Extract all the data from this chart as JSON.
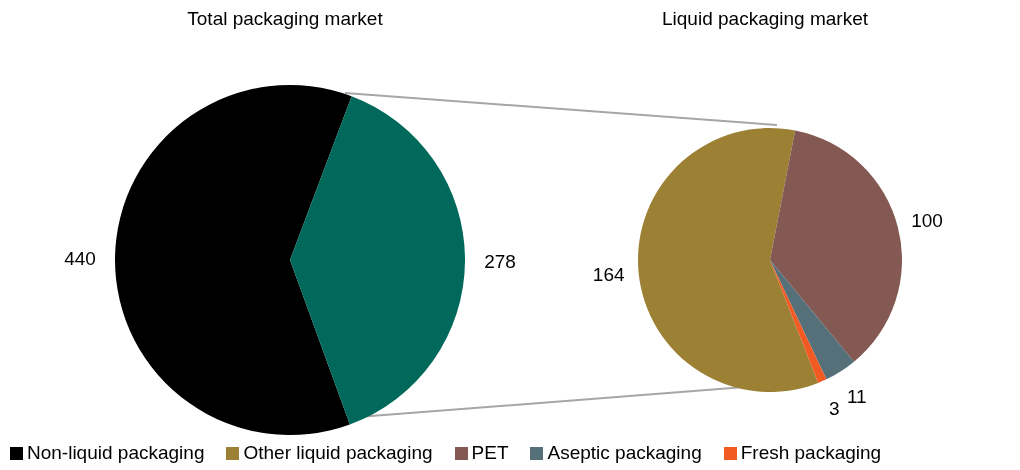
{
  "chart_data": [
    {
      "type": "pie",
      "title": "Total packaging market",
      "categories": [
        "Non-liquid packaging",
        null
      ],
      "values": [
        440,
        278
      ],
      "colors": [
        "#000000",
        "#00695b"
      ],
      "data_labels": true,
      "legend": "bottom"
    },
    {
      "type": "pie",
      "title": "Liquid packaging market",
      "categories": [
        "Other liquid packaging",
        "PET",
        "Aseptic packaging",
        "Fresh packaging"
      ],
      "values": [
        164,
        100,
        11,
        3
      ],
      "colors": [
        "#9c8034",
        "#845853",
        "#56707a",
        "#f25a24"
      ],
      "data_labels": true,
      "legend": "bottom"
    }
  ]
}
